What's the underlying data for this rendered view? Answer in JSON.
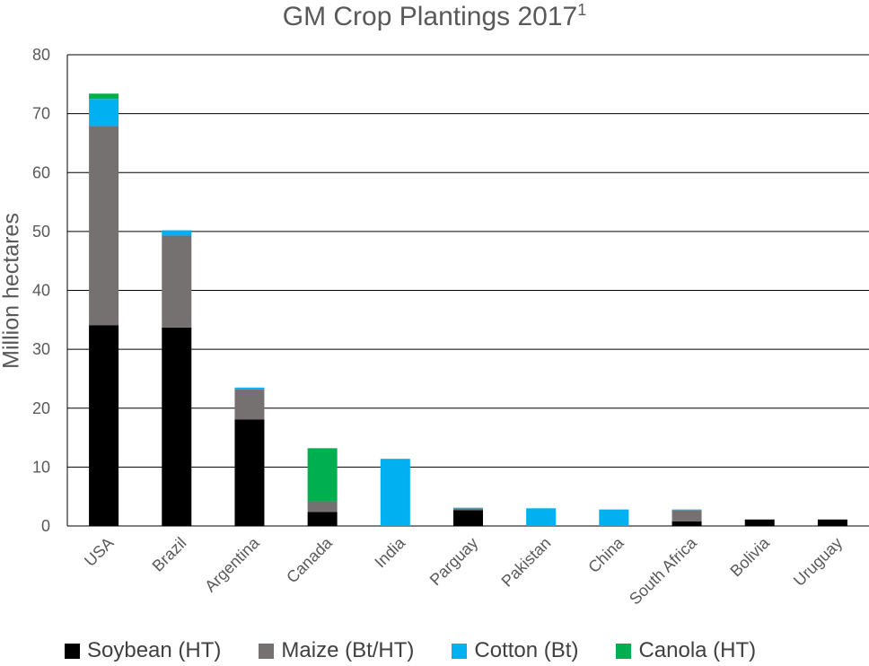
{
  "chart_data": {
    "type": "bar",
    "stacked": true,
    "title": "GM Crop Plantings 2017",
    "title_superscript": "1",
    "xlabel": "",
    "ylabel": "Million hectares",
    "ylim": [
      0,
      80
    ],
    "yticks": [
      0,
      10,
      20,
      30,
      40,
      50,
      60,
      70,
      80
    ],
    "grid": true,
    "legend_position": "bottom",
    "categories": [
      "USA",
      "Brazil",
      "Argentina",
      "Canada",
      "India",
      "Parguay",
      "Pakistan",
      "China",
      "South Africa",
      "Bolivia",
      "Uruguay"
    ],
    "series": [
      {
        "name": "Soybean (HT)",
        "color": "#000000",
        "values": [
          34.1,
          33.7,
          18.1,
          2.4,
          0,
          2.7,
          0,
          0,
          0.8,
          1.1,
          1.1
        ]
      },
      {
        "name": "Maize (Bt/HT)",
        "color": "#767171",
        "values": [
          33.8,
          15.6,
          5.1,
          1.8,
          0,
          0.3,
          0,
          0,
          1.9,
          0,
          0
        ]
      },
      {
        "name": "Cotton (Bt)",
        "color": "#00B0F0",
        "values": [
          4.6,
          0.9,
          0.3,
          0,
          11.4,
          0.1,
          3.0,
          2.8,
          0.1,
          0,
          0
        ]
      },
      {
        "name": "Canola (HT)",
        "color": "#00B050",
        "values": [
          0.9,
          0,
          0,
          9.0,
          0,
          0,
          0,
          0,
          0,
          0,
          0
        ]
      }
    ]
  }
}
